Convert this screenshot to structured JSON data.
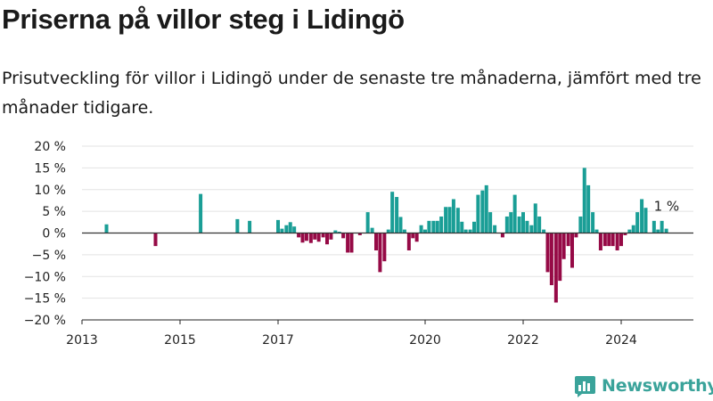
{
  "header": {
    "title": "Priserna på villor steg i Lidingö",
    "subtitle": "Prisutveckling för villor i Lidingö under de senaste tre månaderna, jämfört med tre månader tidigare."
  },
  "brand": {
    "name": "Newsworthy",
    "color": "#3aa39a"
  },
  "colors": {
    "positive": "#1a9e96",
    "negative": "#960a46",
    "grid": "#e3e3e3",
    "zero_line": "#333333"
  },
  "chart_data": {
    "type": "bar",
    "title": "",
    "xlabel": "",
    "ylabel": "",
    "ylim": [
      -20,
      20
    ],
    "xlim": [
      2013.0,
      2025.3
    ],
    "y_ticks": [
      20,
      15,
      10,
      5,
      0,
      -5,
      -10,
      -15,
      -20
    ],
    "y_tick_labels": [
      "20 %",
      "15 %",
      "10 %",
      "5 %",
      "0 %",
      "−5 %",
      "−10 %",
      "−15 %",
      "−20 %"
    ],
    "x_ticks": [
      2013,
      2015,
      2017,
      2020,
      2022,
      2024
    ],
    "x_tick_labels": [
      "2013",
      "2015",
      "2017",
      "2020",
      "2022",
      "2024"
    ],
    "end_label": "1 %",
    "grid": true,
    "legend": "none",
    "points": [
      {
        "x": 2013.5,
        "y": 2
      },
      {
        "x": 2014.5,
        "y": -3
      },
      {
        "x": 2015.42,
        "y": 9
      },
      {
        "x": 2016.17,
        "y": 3.2
      },
      {
        "x": 2016.42,
        "y": 2.8
      },
      {
        "x": 2017.0,
        "y": 3
      },
      {
        "x": 2017.08,
        "y": 1
      },
      {
        "x": 2017.17,
        "y": 1.8
      },
      {
        "x": 2017.25,
        "y": 2.5
      },
      {
        "x": 2017.33,
        "y": 1.5
      },
      {
        "x": 2017.42,
        "y": -1
      },
      {
        "x": 2017.5,
        "y": -2.2
      },
      {
        "x": 2017.58,
        "y": -1.8
      },
      {
        "x": 2017.67,
        "y": -2.3
      },
      {
        "x": 2017.75,
        "y": -1.5
      },
      {
        "x": 2017.83,
        "y": -2
      },
      {
        "x": 2017.92,
        "y": -1
      },
      {
        "x": 2018.0,
        "y": -2.6
      },
      {
        "x": 2018.08,
        "y": -1.5
      },
      {
        "x": 2018.17,
        "y": 0.6
      },
      {
        "x": 2018.25,
        "y": 0.3
      },
      {
        "x": 2018.33,
        "y": -1.2
      },
      {
        "x": 2018.42,
        "y": -4.5
      },
      {
        "x": 2018.5,
        "y": -4.5
      },
      {
        "x": 2018.67,
        "y": -0.5
      },
      {
        "x": 2018.83,
        "y": 4.8
      },
      {
        "x": 2018.92,
        "y": 1.2
      },
      {
        "x": 2019.0,
        "y": -4
      },
      {
        "x": 2019.08,
        "y": -9
      },
      {
        "x": 2019.17,
        "y": -6.5
      },
      {
        "x": 2019.25,
        "y": 0.8
      },
      {
        "x": 2019.33,
        "y": 9.5
      },
      {
        "x": 2019.42,
        "y": 8.3
      },
      {
        "x": 2019.5,
        "y": 3.7
      },
      {
        "x": 2019.58,
        "y": 0.8
      },
      {
        "x": 2019.67,
        "y": -4
      },
      {
        "x": 2019.75,
        "y": -1.2
      },
      {
        "x": 2019.83,
        "y": -2
      },
      {
        "x": 2019.92,
        "y": 1.8
      },
      {
        "x": 2020.0,
        "y": 0.8
      },
      {
        "x": 2020.08,
        "y": 2.8
      },
      {
        "x": 2020.17,
        "y": 2.8
      },
      {
        "x": 2020.25,
        "y": 2.8
      },
      {
        "x": 2020.33,
        "y": 3.8
      },
      {
        "x": 2020.42,
        "y": 6
      },
      {
        "x": 2020.5,
        "y": 6
      },
      {
        "x": 2020.58,
        "y": 7.8
      },
      {
        "x": 2020.67,
        "y": 5.8
      },
      {
        "x": 2020.75,
        "y": 2.6
      },
      {
        "x": 2020.83,
        "y": 0.8
      },
      {
        "x": 2020.92,
        "y": 0.8
      },
      {
        "x": 2021.0,
        "y": 2.6
      },
      {
        "x": 2021.08,
        "y": 8.8
      },
      {
        "x": 2021.17,
        "y": 9.8
      },
      {
        "x": 2021.25,
        "y": 11
      },
      {
        "x": 2021.33,
        "y": 4.8
      },
      {
        "x": 2021.42,
        "y": 1.8
      },
      {
        "x": 2021.58,
        "y": -1
      },
      {
        "x": 2021.67,
        "y": 3.8
      },
      {
        "x": 2021.75,
        "y": 4.8
      },
      {
        "x": 2021.83,
        "y": 8.8
      },
      {
        "x": 2021.92,
        "y": 3.8
      },
      {
        "x": 2022.0,
        "y": 4.8
      },
      {
        "x": 2022.08,
        "y": 2.8
      },
      {
        "x": 2022.17,
        "y": 1.8
      },
      {
        "x": 2022.25,
        "y": 6.8
      },
      {
        "x": 2022.33,
        "y": 3.8
      },
      {
        "x": 2022.42,
        "y": 0.8
      },
      {
        "x": 2022.5,
        "y": -9
      },
      {
        "x": 2022.58,
        "y": -12
      },
      {
        "x": 2022.67,
        "y": -16
      },
      {
        "x": 2022.75,
        "y": -11
      },
      {
        "x": 2022.83,
        "y": -6
      },
      {
        "x": 2022.92,
        "y": -3
      },
      {
        "x": 2023.0,
        "y": -8
      },
      {
        "x": 2023.08,
        "y": -1
      },
      {
        "x": 2023.17,
        "y": 3.8
      },
      {
        "x": 2023.25,
        "y": 15
      },
      {
        "x": 2023.33,
        "y": 11
      },
      {
        "x": 2023.42,
        "y": 4.8
      },
      {
        "x": 2023.5,
        "y": 0.8
      },
      {
        "x": 2023.58,
        "y": -4
      },
      {
        "x": 2023.67,
        "y": -3
      },
      {
        "x": 2023.75,
        "y": -3
      },
      {
        "x": 2023.83,
        "y": -3
      },
      {
        "x": 2023.92,
        "y": -4
      },
      {
        "x": 2024.0,
        "y": -3
      },
      {
        "x": 2024.08,
        "y": -0.5
      },
      {
        "x": 2024.17,
        "y": 0.8
      },
      {
        "x": 2024.25,
        "y": 1.8
      },
      {
        "x": 2024.33,
        "y": 4.8
      },
      {
        "x": 2024.42,
        "y": 7.8
      },
      {
        "x": 2024.5,
        "y": 5.8
      },
      {
        "x": 2024.67,
        "y": 2.8
      },
      {
        "x": 2024.75,
        "y": 0.8
      },
      {
        "x": 2024.83,
        "y": 2.8
      },
      {
        "x": 2024.92,
        "y": 1
      }
    ]
  }
}
